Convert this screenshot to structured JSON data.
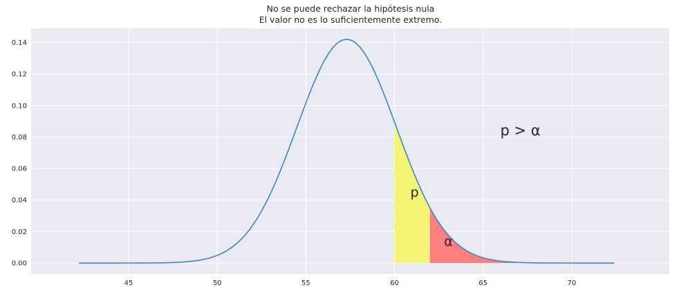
{
  "chart_data": {
    "type": "area",
    "title_lines": [
      "No se puede rechazar la hipótesis nula",
      "El valor no es lo suficientemente extremo."
    ],
    "xlabel": "",
    "ylabel": "",
    "xlim": [
      39.5,
      75.5
    ],
    "ylim": [
      -0.007,
      0.149
    ],
    "x_ticks": [
      45,
      50,
      55,
      60,
      65,
      70
    ],
    "y_ticks": [
      0.0,
      0.02,
      0.04,
      0.06,
      0.08,
      0.1,
      0.12,
      0.14
    ],
    "grid": true,
    "background": "#eaeaf2",
    "curve": {
      "distribution": "normal",
      "mean": 57.3,
      "sd": 2.81,
      "x_range": [
        42.2,
        72.4
      ],
      "color": "#3a86c0"
    },
    "regions": [
      {
        "label": "p",
        "x_from": 60.0,
        "x_to": 62.0,
        "color": "#f5f575",
        "label_x": 60.9,
        "label_y": 0.042
      },
      {
        "label": "α",
        "x_from": 62.0,
        "x_to": 72.4,
        "color": "#ff7f7f",
        "label_x": 62.8,
        "label_y": 0.011
      }
    ],
    "annotations": [
      {
        "text": "p > α",
        "x": 67.1,
        "y": 0.081
      }
    ]
  }
}
